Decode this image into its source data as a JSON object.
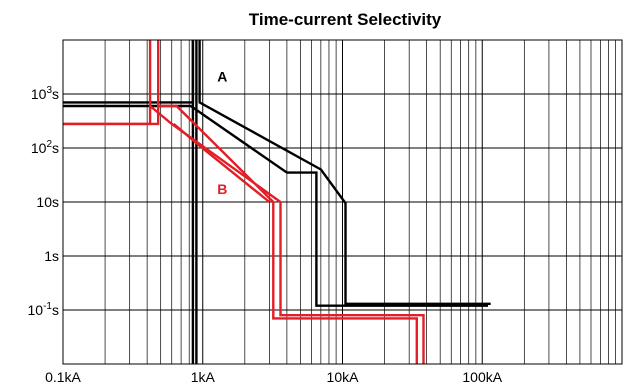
{
  "chart_data": {
    "type": "line",
    "title": "Time-current Selectivity",
    "xlabel": "",
    "ylabel": "",
    "x_scale": "log",
    "y_scale": "log",
    "xlim": [
      0.1,
      1000
    ],
    "ylim": [
      0.01,
      10000
    ],
    "grid": true,
    "x_ticks": [
      {
        "value": 0.1,
        "label": "0.1kA"
      },
      {
        "value": 1,
        "label": "1kA"
      },
      {
        "value": 10,
        "label": "10kA"
      },
      {
        "value": 100,
        "label": "100kA"
      }
    ],
    "y_ticks": [
      {
        "value": 1000,
        "base": "10",
        "exp": "3",
        "unit": "s"
      },
      {
        "value": 100,
        "base": "10",
        "exp": "2",
        "unit": "s"
      },
      {
        "value": 10,
        "base": "10",
        "exp": "",
        "unit": "s"
      },
      {
        "value": 1,
        "base": "1",
        "exp": "",
        "unit": "s"
      },
      {
        "value": 0.1,
        "base": "10",
        "exp": "-1",
        "unit": "s"
      }
    ],
    "series": [
      {
        "name": "A",
        "color": "#000000",
        "curves": [
          [
            [
              0.1,
              700
            ],
            [
              0.85,
              700
            ],
            [
              0.85,
              10000
            ]
          ],
          [
            [
              0.1,
              600
            ],
            [
              0.82,
              600
            ],
            [
              4,
              35
            ],
            [
              6.5,
              35
            ],
            [
              6.5,
              0.12
            ],
            [
              110,
              0.12
            ]
          ],
          [
            [
              0.95,
              10000
            ],
            [
              0.95,
              700
            ],
            [
              7,
              40
            ],
            [
              10.5,
              9.5
            ],
            [
              10.5,
              0.13
            ],
            [
              115,
              0.13
            ]
          ],
          [
            [
              0.85,
              10000
            ],
            [
              0.85,
              0.01
            ]
          ],
          [
            [
              0.9,
              10000
            ],
            [
              0.9,
              0.01
            ]
          ]
        ]
      },
      {
        "name": "B",
        "color": "#e01f26",
        "curves": [
          [
            [
              0.1,
              280
            ],
            [
              0.48,
              280
            ],
            [
              0.48,
              10000
            ]
          ],
          [
            [
              0.1,
              280
            ],
            [
              0.42,
              280
            ],
            [
              0.42,
              10000
            ]
          ],
          [
            [
              0.48,
              600
            ],
            [
              0.65,
              600
            ],
            [
              3.2,
              10
            ],
            [
              3.2,
              0.07
            ],
            [
              34,
              0.07
            ],
            [
              34,
              0.01
            ]
          ],
          [
            [
              0.42,
              600
            ],
            [
              0.6,
              280
            ],
            [
              3.6,
              10
            ],
            [
              3.6,
              0.08
            ],
            [
              38,
              0.08
            ],
            [
              38,
              0.01
            ]
          ],
          [
            [
              0.62,
              280
            ],
            [
              0.95,
              110
            ],
            [
              3.0,
              10
            ]
          ]
        ]
      }
    ],
    "annotations": [
      {
        "text": "A",
        "color": "#000000"
      },
      {
        "text": "B",
        "color": "#e01f26"
      }
    ]
  }
}
